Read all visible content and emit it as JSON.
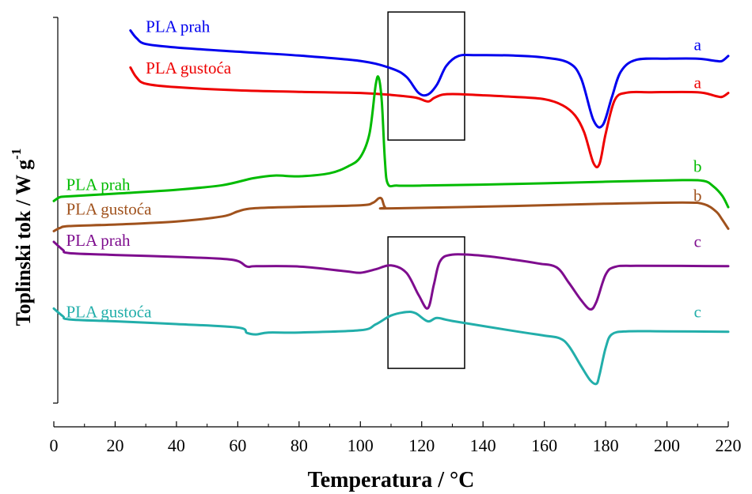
{
  "chart_data": {
    "type": "line",
    "title": "",
    "xlabel": "Temperatura / °C",
    "ylabel": "Toplinski tok / W g",
    "ylabel_superscript": "-1",
    "xlim": [
      0,
      220
    ],
    "x_ticks": [
      0,
      20,
      40,
      60,
      80,
      100,
      120,
      140,
      160,
      180,
      200,
      220
    ],
    "x_tick_labels": [
      "0",
      "20",
      "40",
      "60",
      "80",
      "100",
      "120",
      "140",
      "160",
      "180",
      "200",
      "220"
    ],
    "ylim": [
      0,
      100
    ],
    "y_ticks_labeled": false,
    "grid": false,
    "legend": "inline-labels",
    "highlight_boxes": [
      {
        "x": [
          109,
          134
        ],
        "y": [
          68.2,
          101.4
        ]
      },
      {
        "x": [
          109,
          134
        ],
        "y": [
          9,
          43.1
        ]
      }
    ],
    "series": [
      {
        "name": "PLA prah",
        "tag": "a",
        "color": "#0000ee",
        "label_pos": [
          30,
          96.2
        ],
        "tag_pos": [
          210,
          91.5
        ],
        "points": [
          [
            25,
            96.6
          ],
          [
            27,
            94.6
          ],
          [
            30,
            93.1
          ],
          [
            40,
            92.2
          ],
          [
            60,
            91.1
          ],
          [
            80,
            90.1
          ],
          [
            100,
            88.7
          ],
          [
            110,
            86.8
          ],
          [
            115,
            84.6
          ],
          [
            119,
            80.4
          ],
          [
            122,
            80.0
          ],
          [
            125,
            82.6
          ],
          [
            128,
            87.4
          ],
          [
            132,
            90.0
          ],
          [
            138,
            90.2
          ],
          [
            150,
            90.1
          ],
          [
            160,
            89.6
          ],
          [
            168,
            88.2
          ],
          [
            172,
            84.2
          ],
          [
            176,
            73.4
          ],
          [
            179,
            72.0
          ],
          [
            182,
            79.2
          ],
          [
            185,
            86.0
          ],
          [
            190,
            89.0
          ],
          [
            200,
            89.3
          ],
          [
            210,
            89.3
          ],
          [
            216,
            88.7
          ],
          [
            218,
            88.7
          ],
          [
            220,
            90.0
          ]
        ]
      },
      {
        "name": "PLA gustoća",
        "tag": "a",
        "color": "#ee0000",
        "label_pos": [
          30,
          85.5
        ],
        "tag_pos": [
          210,
          81.7
        ],
        "points": [
          [
            25,
            87.0
          ],
          [
            27,
            84.4
          ],
          [
            30,
            82.8
          ],
          [
            40,
            81.9
          ],
          [
            60,
            81.1
          ],
          [
            80,
            80.7
          ],
          [
            100,
            80.4
          ],
          [
            110,
            79.9
          ],
          [
            118,
            79.2
          ],
          [
            122,
            78.2
          ],
          [
            124,
            79.1
          ],
          [
            127,
            80.0
          ],
          [
            132,
            80.1
          ],
          [
            140,
            79.8
          ],
          [
            150,
            79.4
          ],
          [
            160,
            78.8
          ],
          [
            166,
            77.2
          ],
          [
            170,
            74.6
          ],
          [
            173,
            70.2
          ],
          [
            176,
            62.3
          ],
          [
            178,
            62.0
          ],
          [
            180,
            69.8
          ],
          [
            183,
            78.6
          ],
          [
            187,
            80.5
          ],
          [
            195,
            80.6
          ],
          [
            210,
            80.6
          ],
          [
            216,
            79.6
          ],
          [
            218,
            79.4
          ],
          [
            220,
            80.4
          ]
        ]
      },
      {
        "name": "PLA prah",
        "tag": "b",
        "color": "#00bb00",
        "label_pos": [
          4,
          55.2
        ],
        "tag_pos": [
          210,
          59.9
        ],
        "points": [
          [
            0,
            52.4
          ],
          [
            2,
            53.4
          ],
          [
            5,
            53.6
          ],
          [
            20,
            54.3
          ],
          [
            40,
            55.3
          ],
          [
            55,
            56.5
          ],
          [
            65,
            58.3
          ],
          [
            72,
            59.0
          ],
          [
            80,
            58.8
          ],
          [
            90,
            59.6
          ],
          [
            96,
            61.4
          ],
          [
            100,
            63.8
          ],
          [
            103,
            70.0
          ],
          [
            105,
            82.5
          ],
          [
            106,
            84.3
          ],
          [
            107,
            78.0
          ],
          [
            108,
            62.8
          ],
          [
            109,
            56.8
          ],
          [
            112,
            56.4
          ],
          [
            120,
            56.4
          ],
          [
            150,
            56.8
          ],
          [
            180,
            57.4
          ],
          [
            205,
            57.8
          ],
          [
            212,
            57.6
          ],
          [
            215,
            56.3
          ],
          [
            218,
            53.8
          ],
          [
            220,
            50.8
          ]
        ]
      },
      {
        "name": "PLA gustoća",
        "tag": "b",
        "color": "#a0521d",
        "label_pos": [
          4,
          48.9
        ],
        "tag_pos": [
          210,
          52.4
        ],
        "points": [
          [
            0,
            44.6
          ],
          [
            2,
            45.4
          ],
          [
            5,
            45.9
          ],
          [
            20,
            46.3
          ],
          [
            40,
            47.1
          ],
          [
            55,
            48.4
          ],
          [
            60,
            49.7
          ],
          [
            65,
            50.5
          ],
          [
            80,
            50.9
          ],
          [
            100,
            51.3
          ],
          [
            104,
            51.9
          ],
          [
            106,
            53.1
          ],
          [
            107,
            52.9
          ],
          [
            108,
            50.8
          ],
          [
            110,
            50.5
          ],
          [
            150,
            51.1
          ],
          [
            180,
            51.7
          ],
          [
            205,
            52.0
          ],
          [
            212,
            51.6
          ],
          [
            216,
            49.7
          ],
          [
            218,
            47.6
          ],
          [
            220,
            45.2
          ]
        ]
      },
      {
        "name": "PLA prah",
        "tag": "c",
        "color": "#7e0d8e",
        "label_pos": [
          4,
          40.8
        ],
        "tag_pos": [
          210,
          40.5
        ],
        "points": [
          [
            0,
            41.8
          ],
          [
            3,
            39.7
          ],
          [
            5,
            38.9
          ],
          [
            20,
            38.4
          ],
          [
            40,
            37.9
          ],
          [
            58,
            37.2
          ],
          [
            63,
            35.4
          ],
          [
            66,
            35.5
          ],
          [
            80,
            35.4
          ],
          [
            95,
            34.2
          ],
          [
            100,
            33.8
          ],
          [
            105,
            34.7
          ],
          [
            110,
            35.7
          ],
          [
            115,
            33.8
          ],
          [
            119,
            28.0
          ],
          [
            122,
            24.6
          ],
          [
            124,
            30.8
          ],
          [
            126,
            36.8
          ],
          [
            130,
            38.5
          ],
          [
            140,
            38.2
          ],
          [
            150,
            37.2
          ],
          [
            158,
            36.2
          ],
          [
            164,
            35.2
          ],
          [
            168,
            31.2
          ],
          [
            172,
            26.7
          ],
          [
            175,
            24.3
          ],
          [
            177,
            26.3
          ],
          [
            180,
            33.3
          ],
          [
            183,
            35.3
          ],
          [
            190,
            35.6
          ],
          [
            220,
            35.5
          ]
        ]
      },
      {
        "name": "PLA gustoća",
        "tag": "c",
        "color": "#22aeaa",
        "label_pos": [
          4,
          22.2
        ],
        "tag_pos": [
          210,
          22.2
        ],
        "points": [
          [
            0,
            24.5
          ],
          [
            3,
            22.5
          ],
          [
            5,
            21.7
          ],
          [
            20,
            21.2
          ],
          [
            40,
            20.5
          ],
          [
            60,
            19.6
          ],
          [
            63,
            18.2
          ],
          [
            66,
            17.8
          ],
          [
            70,
            18.3
          ],
          [
            80,
            18.3
          ],
          [
            100,
            18.9
          ],
          [
            105,
            20.4
          ],
          [
            110,
            22.7
          ],
          [
            115,
            23.6
          ],
          [
            118,
            23.3
          ],
          [
            122,
            21.2
          ],
          [
            125,
            22.1
          ],
          [
            130,
            21.3
          ],
          [
            150,
            18.7
          ],
          [
            160,
            17.5
          ],
          [
            165,
            16.8
          ],
          [
            168,
            14.8
          ],
          [
            172,
            9.6
          ],
          [
            175,
            5.9
          ],
          [
            177,
            5.0
          ],
          [
            178,
            7.3
          ],
          [
            180,
            14.3
          ],
          [
            182,
            17.8
          ],
          [
            187,
            18.6
          ],
          [
            200,
            18.6
          ],
          [
            220,
            18.5
          ]
        ]
      }
    ]
  }
}
